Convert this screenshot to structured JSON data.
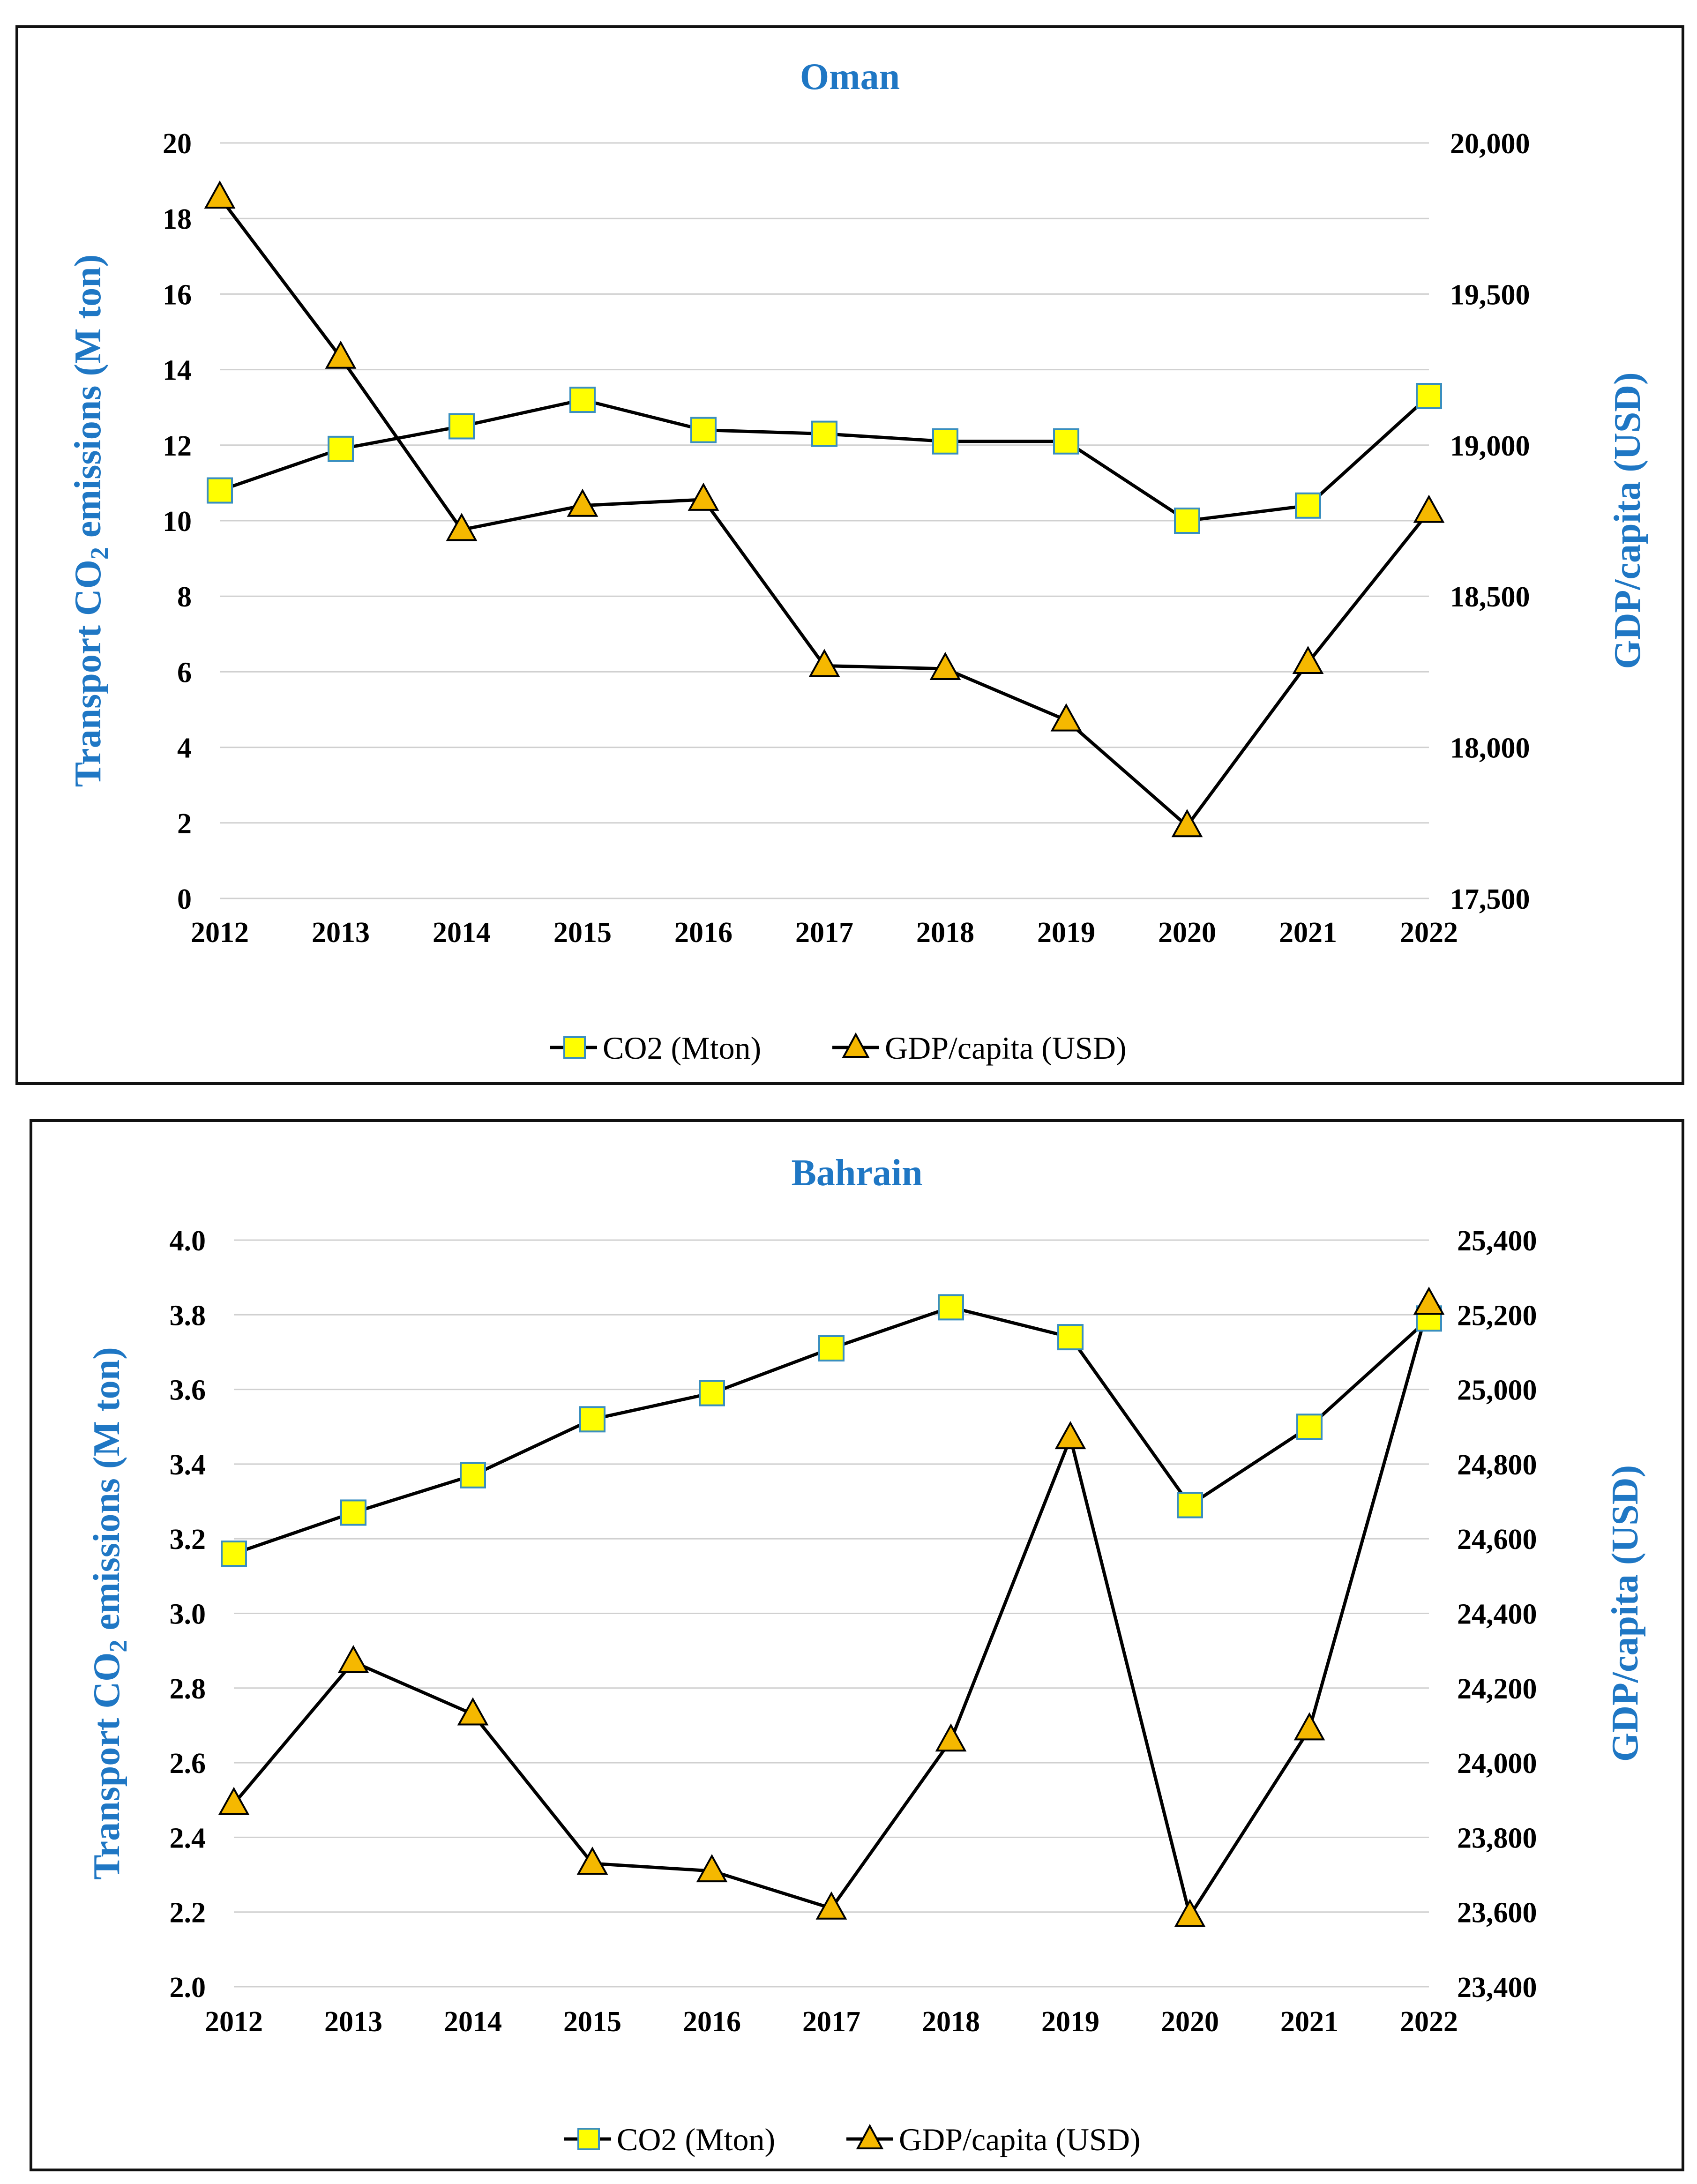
{
  "chart_data": [
    {
      "type": "line",
      "title": "Oman",
      "x": [
        "2012",
        "2013",
        "2014",
        "2015",
        "2016",
        "2017",
        "2018",
        "2019",
        "2020",
        "2021",
        "2022"
      ],
      "ylabel_parts": [
        "Transport CO",
        "2",
        " emissions (M ton)"
      ],
      "y2label": "GDP/capita (USD)",
      "ylim": [
        0,
        20
      ],
      "yticks": [
        0,
        2,
        4,
        6,
        8,
        10,
        12,
        14,
        16,
        18,
        20
      ],
      "ytick_labels": [
        "0",
        "2",
        "4",
        "6",
        "8",
        "10",
        "12",
        "14",
        "16",
        "18",
        "20"
      ],
      "y2lim": [
        17500,
        20000
      ],
      "y2ticks": [
        17500,
        18000,
        18500,
        19000,
        19500,
        20000
      ],
      "y2tick_labels": [
        "17,500",
        "18,000",
        "18,500",
        "19,000",
        "19,500",
        "20,000"
      ],
      "legend_position": "bottom",
      "series": [
        {
          "name": "CO2 (Mton)",
          "axis": "left",
          "marker": "square",
          "color": "#ffff00",
          "values": [
            10.8,
            11.9,
            12.5,
            13.2,
            12.4,
            12.3,
            12.1,
            12.1,
            10.0,
            10.4,
            13.3
          ]
        },
        {
          "name": "GDP/capita (USD)",
          "axis": "right",
          "marker": "triangle",
          "color": "#f5b800",
          "values": [
            19820,
            19290,
            18720,
            18800,
            18820,
            18270,
            18260,
            18090,
            17740,
            18280,
            18780
          ]
        }
      ]
    },
    {
      "type": "line",
      "title": "Bahrain",
      "x": [
        "2012",
        "2013",
        "2014",
        "2015",
        "2016",
        "2017",
        "2018",
        "2019",
        "2020",
        "2021",
        "2022"
      ],
      "ylabel_parts": [
        "Transport CO",
        "2",
        " emissions (M ton)"
      ],
      "y2label": "GDP/capita (USD)",
      "ylim": [
        2.0,
        4.0
      ],
      "yticks": [
        2.0,
        2.2,
        2.4,
        2.6,
        2.8,
        3.0,
        3.2,
        3.4,
        3.6,
        3.8,
        4.0
      ],
      "ytick_labels": [
        "2.0",
        "2.2",
        "2.4",
        "2.6",
        "2.8",
        "3.0",
        "3.2",
        "3.4",
        "3.6",
        "3.8",
        "4.0"
      ],
      "y2lim": [
        23400,
        25400
      ],
      "y2ticks": [
        23400,
        23600,
        23800,
        24000,
        24200,
        24400,
        24600,
        24800,
        25000,
        25200,
        25400
      ],
      "y2tick_labels": [
        "23,400",
        "23,600",
        "23,800",
        "24,000",
        "24,200",
        "24,400",
        "24,600",
        "24,800",
        "25,000",
        "25,200",
        "25,400"
      ],
      "legend_position": "bottom",
      "series": [
        {
          "name": "CO2 (Mton)",
          "axis": "left",
          "marker": "square",
          "color": "#ffff00",
          "values": [
            3.16,
            3.27,
            3.37,
            3.52,
            3.59,
            3.71,
            3.82,
            3.74,
            3.29,
            3.5,
            3.79
          ]
        },
        {
          "name": "GDP/capita (USD)",
          "axis": "right",
          "marker": "triangle",
          "color": "#f5b800",
          "values": [
            23890,
            24270,
            24130,
            23730,
            23710,
            23610,
            24060,
            24870,
            23590,
            24090,
            25230
          ]
        }
      ]
    }
  ]
}
